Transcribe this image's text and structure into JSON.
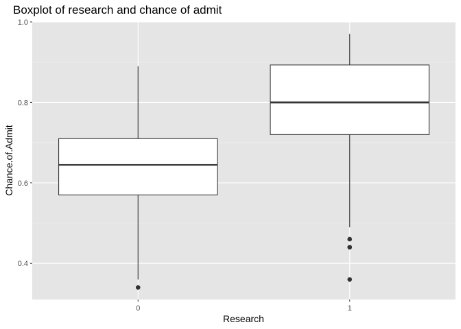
{
  "chart_data": {
    "type": "boxplot",
    "title": "Boxplot of research and chance of admit",
    "xlabel": "Research",
    "ylabel": "Chance.of.Admit",
    "categories": [
      "0",
      "1"
    ],
    "ylim": [
      0.31,
      1.0
    ],
    "yticks": [
      0.4,
      0.6,
      0.8,
      1.0
    ],
    "ytick_labels": [
      "0.4",
      "0.6",
      "0.8",
      "1.0"
    ],
    "grid": true,
    "legend": "none",
    "boxes": [
      {
        "category": "0",
        "lower_whisker": 0.36,
        "q1": 0.57,
        "median": 0.645,
        "q3": 0.71,
        "upper_whisker": 0.89,
        "outliers": [
          0.34
        ]
      },
      {
        "category": "1",
        "lower_whisker": 0.49,
        "q1": 0.72,
        "median": 0.8,
        "q3": 0.893,
        "upper_whisker": 0.97,
        "outliers": [
          0.46,
          0.44,
          0.44,
          0.36
        ]
      }
    ],
    "colors": {
      "panel": "#e5e5e5",
      "box_fill": "#ffffff",
      "box_line": "#333333"
    }
  }
}
